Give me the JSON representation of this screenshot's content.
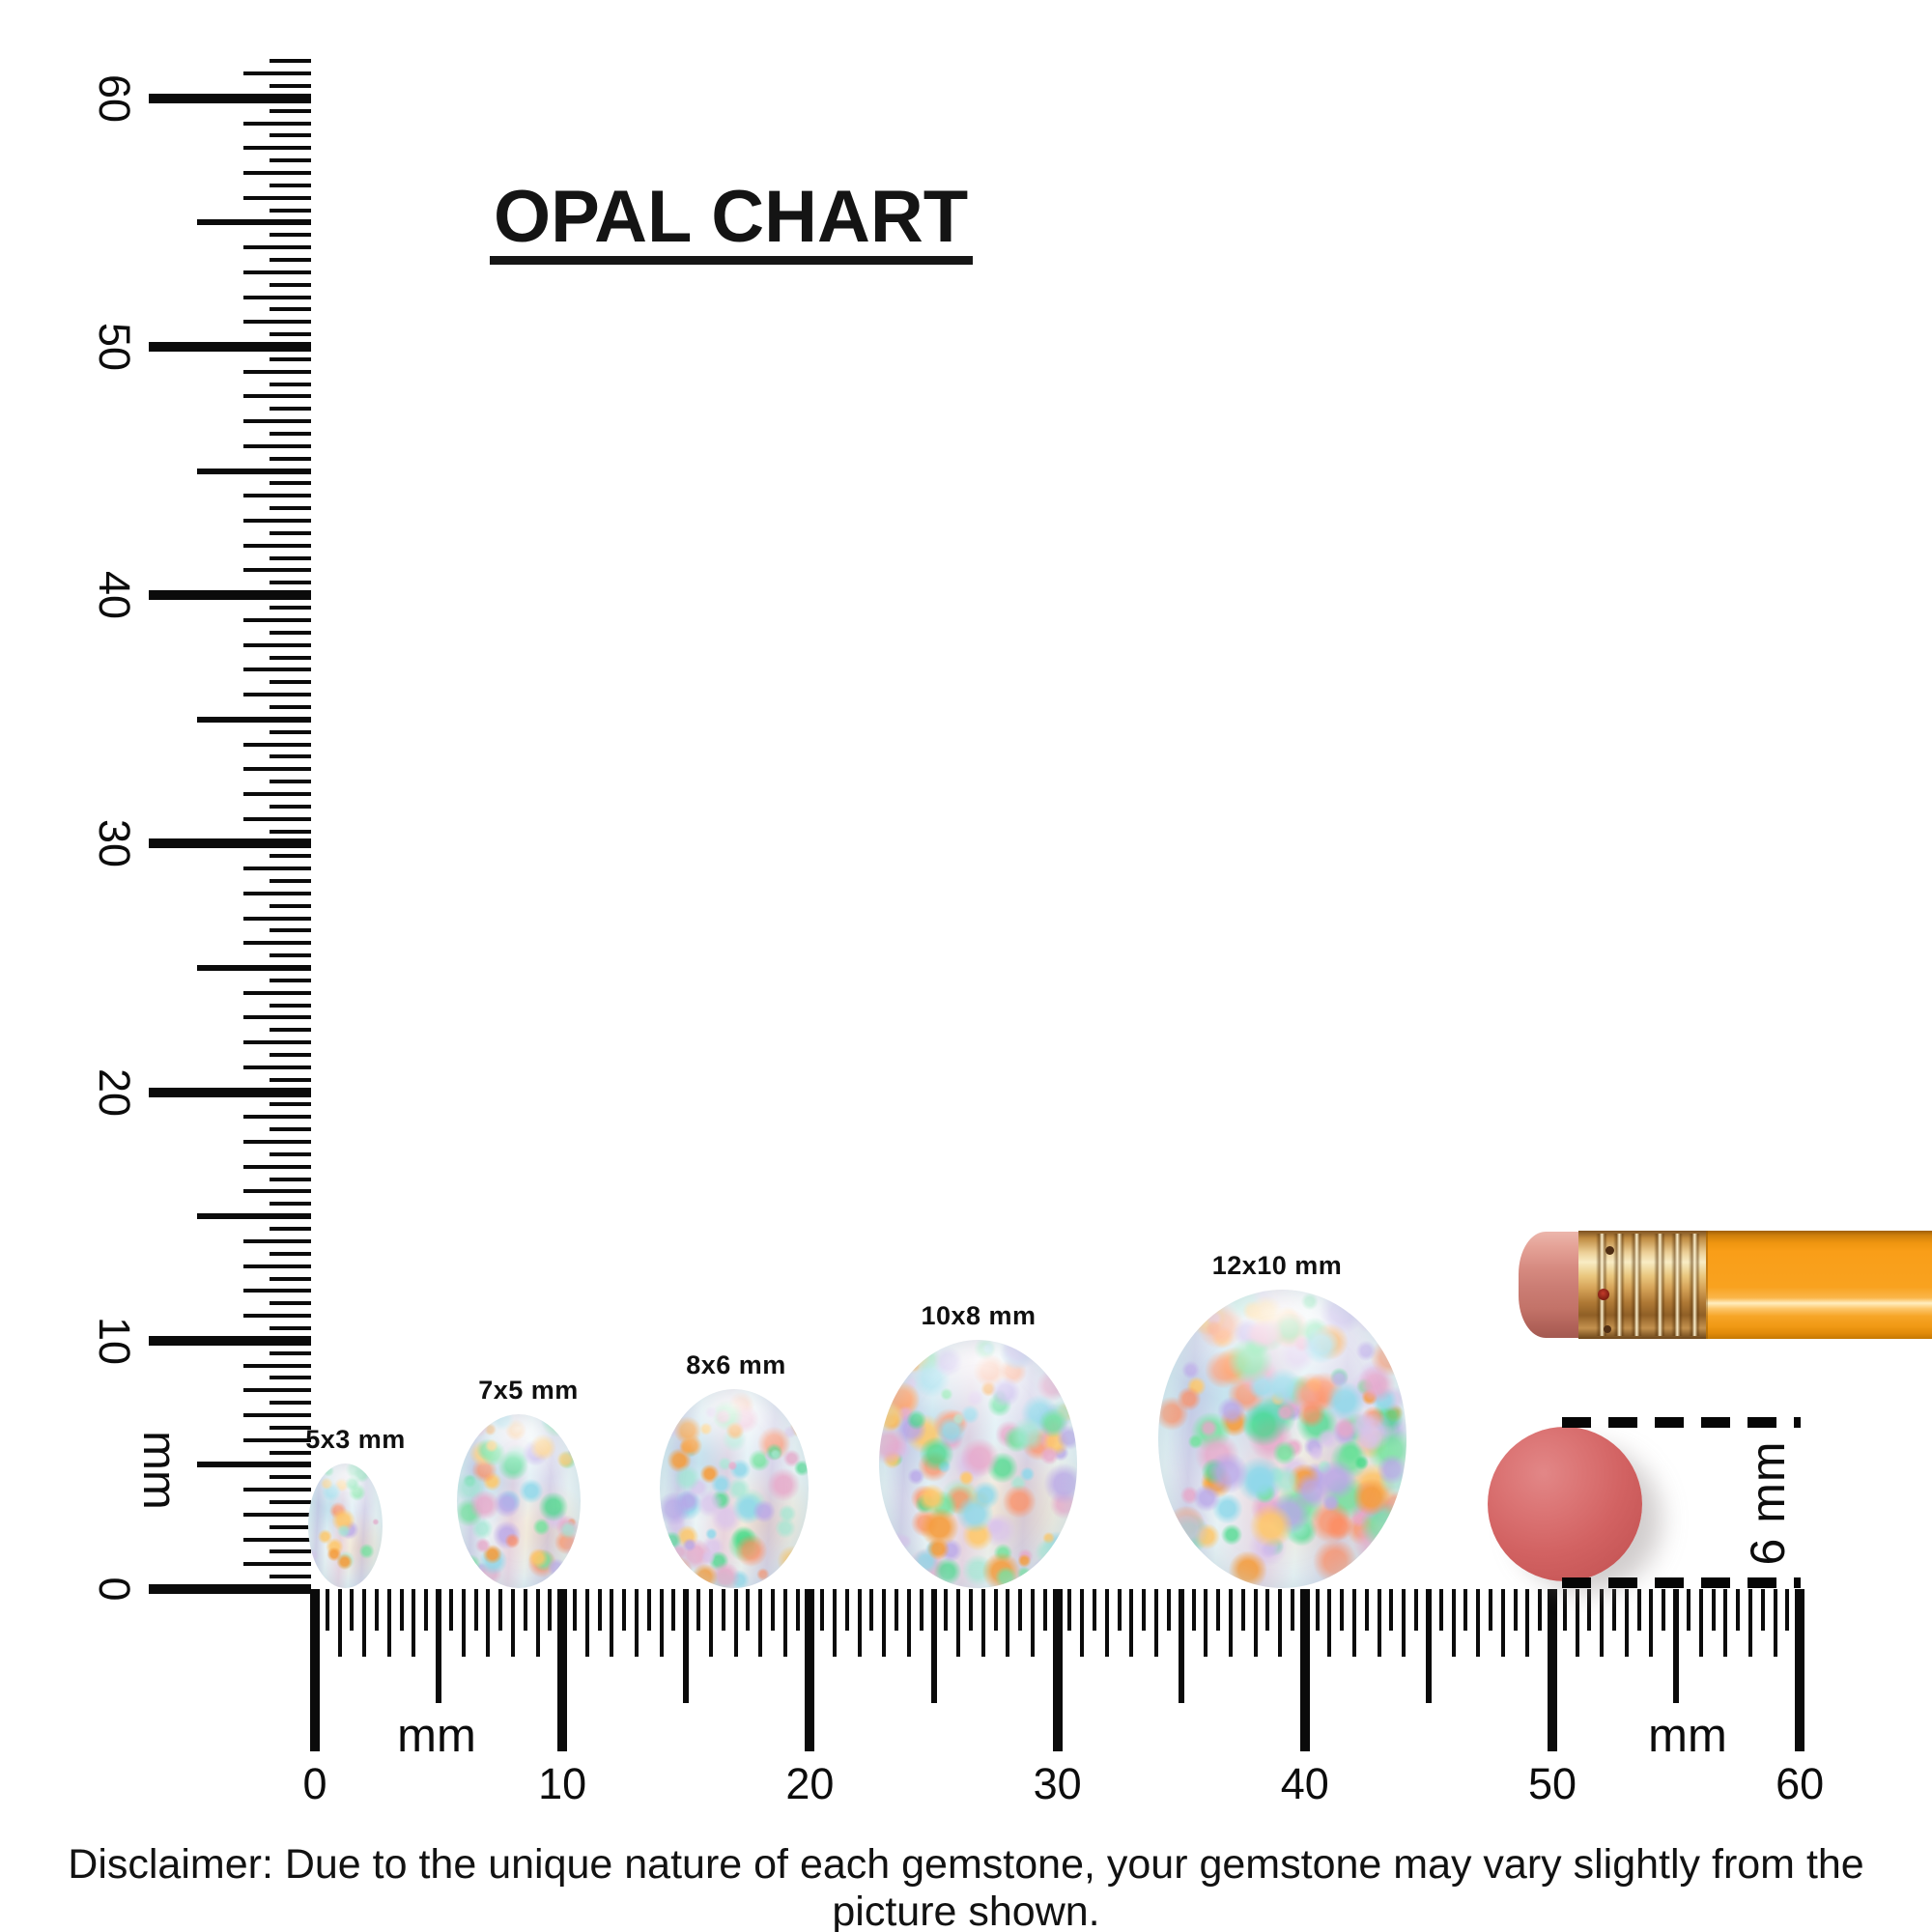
{
  "title": {
    "text": "OPAL CHART"
  },
  "rulers": {
    "vertical": {
      "unit": "mm",
      "labels": [
        "0",
        "10",
        "20",
        "30",
        "40",
        "50",
        "60"
      ]
    },
    "horizontal": {
      "unit": "mm",
      "labels": [
        "0",
        "10",
        "20",
        "30",
        "40",
        "50",
        "60"
      ]
    }
  },
  "opals": [
    {
      "label": "5x3 mm",
      "width_mm": 3,
      "height_mm": 5
    },
    {
      "label": "7x5 mm",
      "width_mm": 5,
      "height_mm": 7
    },
    {
      "label": "8x6 mm",
      "width_mm": 6,
      "height_mm": 8
    },
    {
      "label": "10x8 mm",
      "width_mm": 8,
      "height_mm": 10
    },
    {
      "label": "12x10 mm",
      "width_mm": 10,
      "height_mm": 12
    }
  ],
  "reference_objects": {
    "eraser_disc": {
      "dimension_label": "6 mm",
      "diameter_mm": 6
    },
    "pencil": {
      "name": "pencil with eraser end"
    }
  },
  "disclaimer": "Disclaimer: Due to the unique nature of each gemstone, your gemstone may vary slightly from the picture shown.",
  "colors": {
    "ink": "#0d0d0d",
    "opal_base_light": "#f8fcfc",
    "opal_base": "#ecf5f6",
    "opal_base_mid": "#e0eef1",
    "opal_base_deep": "#d5e8ec",
    "opal_speckles": [
      "#f59d3dE6",
      "#ffc766D9",
      "#6fe39aCC",
      "#3dd984B3",
      "#b9a6e8CC",
      "#8fd8eaD9",
      "#e8a7c9CC",
      "#ff8a5cB3",
      "#d9c2ecB3",
      "#9fe8d2B3"
    ],
    "opal_washes": [
      "#8cc8e180",
      "#e0a8c766",
      "#b3a0d666",
      "#f6bd7a59"
    ],
    "pencil_body": "#f89f1a",
    "pencil_ferrule": "#e7bd74",
    "pencil_eraser": "#d4857d",
    "eraser_disc": "#cf5f5f",
    "dash": "#070707"
  },
  "chart_data": {
    "type": "table",
    "title": "OPAL CHART",
    "columns": [
      "size_label",
      "width_mm",
      "height_mm"
    ],
    "rows": [
      [
        "5x3 mm",
        3,
        5
      ],
      [
        "7x5 mm",
        5,
        7
      ],
      [
        "8x6 mm",
        6,
        8
      ],
      [
        "10x8 mm",
        8,
        10
      ],
      [
        "12x10 mm",
        10,
        12
      ]
    ],
    "rulers": {
      "horizontal_range_mm": [
        0,
        60
      ],
      "vertical_range_mm": [
        0,
        60
      ],
      "tick_interval_mm": 0.5,
      "unit": "mm"
    },
    "reference": {
      "label": "6 mm",
      "object": "round eraser disc beside pencil"
    }
  }
}
